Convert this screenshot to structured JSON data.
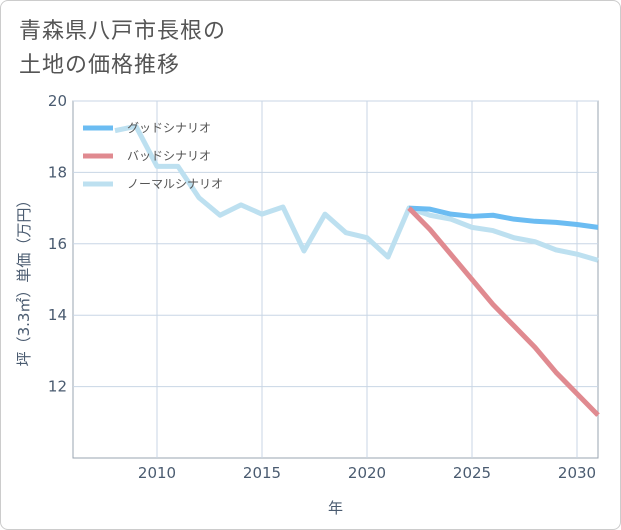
{
  "title_line1": "青森県八戸市長根の",
  "title_line2": "土地の価格推移",
  "chart_data": {
    "type": "line",
    "title": "青森県八戸市長根の土地の価格推移",
    "xlabel": "年",
    "ylabel": "坪（3.3㎡）単価（万円）",
    "xlim": [
      2006,
      2031
    ],
    "ylim": [
      10,
      20
    ],
    "xticks": [
      2010,
      2015,
      2020,
      2025,
      2030
    ],
    "yticks": [
      12,
      14,
      16,
      18,
      20
    ],
    "grid": true,
    "legend_position": "top-left",
    "series": [
      {
        "name": "グッドシナリオ",
        "color": "#6bbcf2",
        "x": [
          2022,
          2023,
          2024,
          2025,
          2026,
          2027,
          2028,
          2029,
          2030,
          2031
        ],
        "y": [
          17.0,
          16.97,
          16.83,
          16.77,
          16.8,
          16.69,
          16.63,
          16.6,
          16.54,
          16.46
        ]
      },
      {
        "name": "バッドシナリオ",
        "color": "#e08a90",
        "x": [
          2022,
          2023,
          2024,
          2025,
          2026,
          2027,
          2028,
          2029,
          2030,
          2031
        ],
        "y": [
          17.0,
          16.4,
          15.7,
          15.0,
          14.3,
          13.7,
          13.1,
          12.4,
          11.8,
          11.2
        ]
      },
      {
        "name": "ノーマルシナリオ",
        "color": "#bde0f0",
        "x": [
          2008,
          2009,
          2010,
          2011,
          2012,
          2013,
          2014,
          2015,
          2016,
          2017,
          2018,
          2019,
          2020,
          2021,
          2022,
          2023,
          2024,
          2025,
          2026,
          2027,
          2028,
          2029,
          2030,
          2031
        ],
        "y": [
          19.17,
          19.29,
          18.17,
          18.17,
          17.29,
          16.8,
          17.09,
          16.83,
          17.03,
          15.8,
          16.83,
          16.31,
          16.17,
          15.63,
          17.0,
          16.8,
          16.69,
          16.46,
          16.37,
          16.17,
          16.06,
          15.83,
          15.71,
          15.54
        ]
      }
    ]
  }
}
